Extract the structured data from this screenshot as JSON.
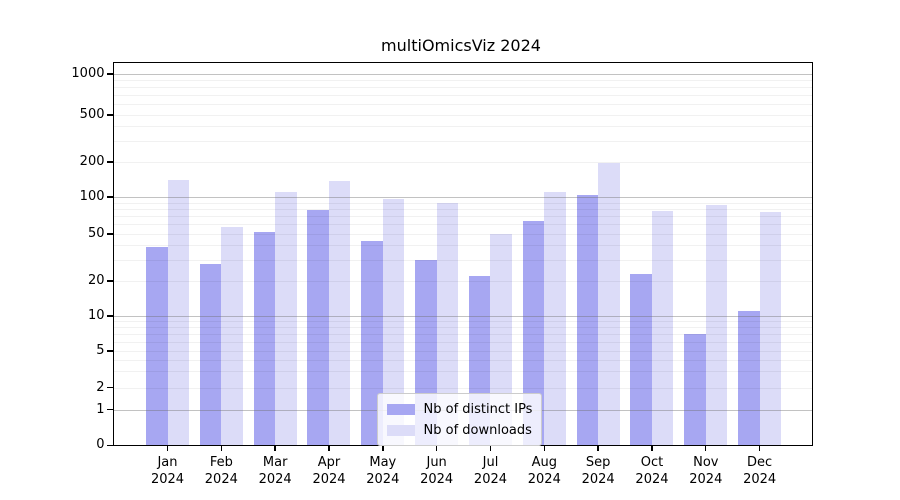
{
  "chart_data": {
    "type": "bar",
    "title": "multiOmicsViz 2024",
    "categories": [
      "Jan",
      "Feb",
      "Mar",
      "Apr",
      "May",
      "Jun",
      "Jul",
      "Aug",
      "Sep",
      "Oct",
      "Nov",
      "Dec"
    ],
    "category_year": "2024",
    "series": [
      {
        "name": "Nb of distinct IPs",
        "color": "#a7a7f2",
        "values": [
          39,
          28,
          52,
          78,
          44,
          30,
          22,
          64,
          105,
          23,
          7,
          11
        ]
      },
      {
        "name": "Nb of downloads",
        "color": "#dcdcf8",
        "values": [
          140,
          57,
          110,
          138,
          96,
          90,
          50,
          110,
          196,
          77,
          86,
          75
        ]
      }
    ],
    "yscale": "log-like with zero baseline",
    "yticks": [
      0,
      1,
      2,
      5,
      10,
      20,
      50,
      100,
      200,
      500,
      1000
    ],
    "major_gridlines": [
      1,
      10,
      100,
      1000
    ],
    "minor_gridlines": [
      3,
      4,
      6,
      7,
      8,
      9,
      30,
      40,
      60,
      70,
      80,
      90,
      300,
      400,
      600,
      700,
      800,
      900
    ],
    "ylim": [
      0,
      1400
    ],
    "grid": true,
    "legend": {
      "position": "lower center",
      "entries": [
        "Nb of distinct IPs",
        "Nb of downloads"
      ]
    }
  }
}
